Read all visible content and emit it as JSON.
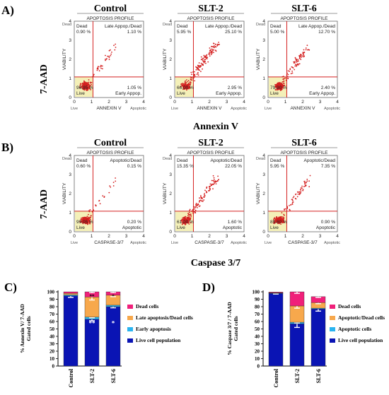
{
  "panels": {
    "A": "A)",
    "B": "B)",
    "C": "C)",
    "D": "D)"
  },
  "flow_rows": [
    {
      "id": "annexin",
      "y_label": "7-AAD",
      "x_title": "Annexin V",
      "x_axis": "ANNEXIN V",
      "quad_labels": {
        "ul": "Dead",
        "ur": "Late Appop./Dead",
        "lr": "Early Appop.",
        "ll": "Live"
      },
      "plots": [
        {
          "group": "Control",
          "header": "APOPTOSIS PROFILE",
          "ul": "0.90 %",
          "ur": "1.10 %",
          "lr": "1.05 %",
          "ll": "96.95 %",
          "spread": 0.12
        },
        {
          "group": "SLT-2",
          "header": "APOPTOSIS PROFILE",
          "ul": "5.95 %",
          "ur": "25.10 %",
          "lr": "2.95 %",
          "ll": "66.00 %",
          "spread": 0.55
        },
        {
          "group": "SLT-6",
          "header": "APOPTOSIS PROFILE",
          "ul": "5.00 %",
          "ur": "12.70 %",
          "lr": "2.40 %",
          "ll": "79.90 %",
          "spread": 0.35
        }
      ]
    },
    {
      "id": "caspase",
      "y_label": "7-AAD",
      "x_title": "Caspase 3/7",
      "x_axis": "CASPASE-3/7",
      "quad_labels": {
        "ul": "Dead",
        "ur": "Apoptotic/Dead",
        "lr": "Apoptotic",
        "ll": "Live"
      },
      "plots": [
        {
          "group": "Control",
          "header": "APOPTOSIS PROFILE",
          "ul": "0.60 %",
          "ur": "0.15 %",
          "lr": "0.20 %",
          "ll": "99.05 %",
          "spread": 0.1
        },
        {
          "group": "SLT-2",
          "header": "APOPTOSIS PROFILE",
          "ul": "15.35 %",
          "ur": "22.05 %",
          "lr": "1.60 %",
          "ll": "61.00 %",
          "spread": 0.5
        },
        {
          "group": "SLT-6",
          "header": "APOPTOSIS PROFILE",
          "ul": "5.95 %",
          "ur": "7.35 %",
          "lr": "0.90 %",
          "ll": "85.80 %",
          "spread": 0.3
        }
      ]
    }
  ],
  "flow_axis": {
    "viability": "VIABILITY",
    "left_top": "Dead",
    "left_bottom": "Live",
    "bottom_right": "Apoptotic",
    "ticks": [
      "0",
      "1",
      "2",
      "3",
      "4"
    ]
  },
  "chart_data": [
    {
      "type": "bar",
      "stacked": true,
      "categories": [
        "Control",
        "SLT-2",
        "SLT-6"
      ],
      "ylabel": "% Annexin V/ 7-AAD Gated cells",
      "ylim": [
        0,
        100
      ],
      "yticks": [
        0,
        10,
        20,
        30,
        40,
        50,
        60,
        70,
        80,
        90,
        100
      ],
      "series": [
        {
          "name": "Live cell population",
          "color": "#0a14b4",
          "values": [
            94.5,
            63,
            80
          ],
          "err": [
            2,
            2,
            1.5
          ]
        },
        {
          "name": "Early apoptosis",
          "color": "#2ab4f0",
          "values": [
            1.5,
            3,
            2
          ],
          "err": [
            0.5,
            1,
            0.5
          ]
        },
        {
          "name": "Late apoptosis/Dead cells",
          "color": "#f7a84c",
          "values": [
            2,
            27,
            13.5
          ],
          "err": [
            0.5,
            4,
            2
          ]
        },
        {
          "name": "Dead cells",
          "color": "#f0207a",
          "values": [
            2,
            7,
            4.5
          ],
          "err": [
            0.5,
            1,
            1
          ]
        }
      ],
      "annotations": [
        {
          "category": "SLT-2",
          "text": "**"
        },
        {
          "category": "SLT-6",
          "text": "*"
        }
      ]
    },
    {
      "type": "bar",
      "stacked": true,
      "categories": [
        "Control",
        "SLT-2",
        "SLT-6"
      ],
      "ylabel": "% Caspase 3/7 / 7-AAD Gated cells",
      "ylim": [
        0,
        100
      ],
      "yticks": [
        0,
        10,
        20,
        30,
        40,
        50,
        60,
        70,
        80,
        90,
        100
      ],
      "series": [
        {
          "name": "Live cell population",
          "color": "#0a14b4",
          "values": [
            98,
            57,
            77
          ],
          "err": [
            1,
            5,
            3
          ]
        },
        {
          "name": "Apoptotic cells",
          "color": "#2ab4f0",
          "values": [
            0.3,
            2,
            1
          ],
          "err": [
            0.1,
            1,
            0.5
          ]
        },
        {
          "name": "Apoptotic/Dead cells",
          "color": "#f7a84c",
          "values": [
            0.4,
            22,
            7.5
          ],
          "err": [
            0.1,
            3,
            1.5
          ]
        },
        {
          "name": "Dead cells",
          "color": "#f0207a",
          "values": [
            1,
            19,
            8
          ],
          "err": [
            0.2,
            2,
            1
          ]
        }
      ],
      "annotations": []
    }
  ]
}
